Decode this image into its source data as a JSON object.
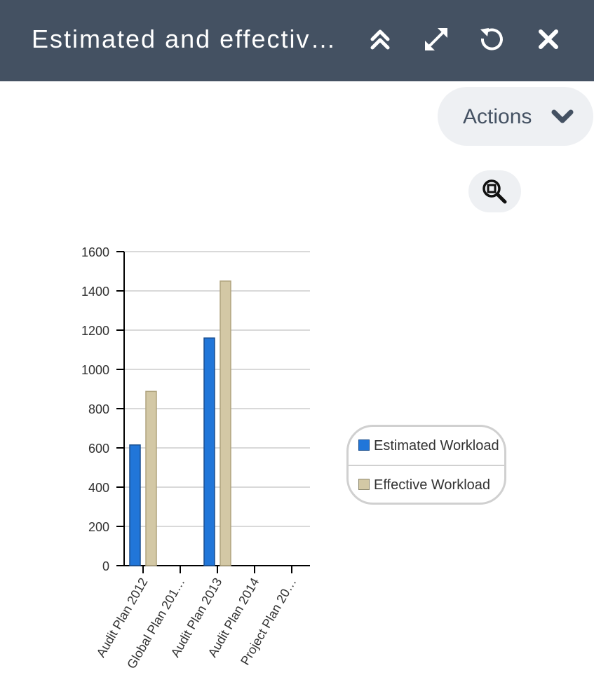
{
  "window": {
    "title": "Estimated and effectiv…",
    "buttons": [
      "collapse-icon",
      "expand-icon",
      "refresh-icon",
      "close-icon"
    ]
  },
  "toolbar": {
    "actions_label": "Actions",
    "actions_icon": "chevron-down-icon",
    "zoom_icon": "zoom-icon"
  },
  "colors": {
    "header_bg": "#445162",
    "estimated": "#2176D9",
    "effective": "#D3C8A5"
  },
  "legend": [
    {
      "label": "Estimated Workload",
      "color": "#2176D9"
    },
    {
      "label": "Effective Workload",
      "color": "#D3C8A5"
    }
  ],
  "chart_data": {
    "type": "bar",
    "categories": [
      "Audit Plan 2012",
      "Global Plan 201…",
      "Audit Plan 2013",
      "Audit Plan 2014",
      "Project Plan 20…"
    ],
    "series": [
      {
        "name": "Estimated Workload",
        "values": [
          615,
          0,
          1160,
          0,
          0
        ]
      },
      {
        "name": "Effective Workload",
        "values": [
          888,
          0,
          1450,
          0,
          0
        ]
      }
    ],
    "ylim": [
      0,
      1600
    ],
    "yticks": [
      0,
      200,
      400,
      600,
      800,
      1000,
      1200,
      1400,
      1600
    ],
    "grid": true,
    "legend_position": "right"
  }
}
